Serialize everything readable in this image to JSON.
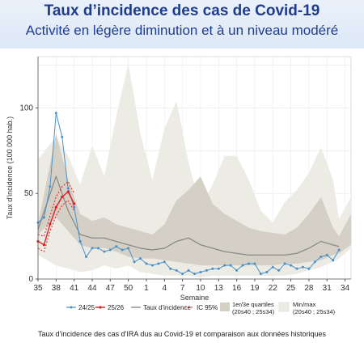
{
  "header": {
    "title": "Taux d’incidence des cas de Covid-19",
    "subtitle": "Activité en légère diminution et à un niveau modéré"
  },
  "caption": "Taux d’incidence des cas d'IRA dus au Covid-19 et comparaison aux données historiques",
  "colors": {
    "minmax_band": "#ecebe4",
    "quartile_band": "#d4d0c6",
    "series_2425": "#4a90c8",
    "series_2526": "#e02020",
    "median": "#8a8a8a"
  },
  "chart_data": {
    "type": "line",
    "xlabel": "Semaine",
    "ylabel": "Taux d'incidence (100 000 hab.)",
    "ylim": [
      0,
      130
    ],
    "yticks": [
      0,
      50,
      100
    ],
    "xtick_labels": [
      "35",
      "38",
      "41",
      "44",
      "47",
      "50",
      "1",
      "4",
      "7",
      "10",
      "13",
      "16",
      "19",
      "22",
      "25",
      "28",
      "31",
      "34"
    ],
    "grid": true,
    "legend_position": "bottom",
    "legend": [
      {
        "key": "s2425",
        "label": "24/25"
      },
      {
        "key": "s2526",
        "label": "25/26"
      },
      {
        "key": "median",
        "label": "Taux d'incidence"
      },
      {
        "key": "ic",
        "label": "IC 95%"
      },
      {
        "key": "quart",
        "label": "1er/3e quartiles",
        "sub": "(20s40 ; 25s34)"
      },
      {
        "key": "minmax",
        "label": "Min/max",
        "sub": "(20s40 ; 25s34)"
      }
    ],
    "minmax_band": {
      "x": [
        0,
        3,
        5,
        7,
        9,
        11,
        13,
        15,
        17,
        19,
        21,
        23,
        25,
        27,
        29,
        31,
        33,
        35,
        37,
        39,
        41,
        43,
        45,
        47,
        49,
        50,
        52
      ],
      "low": [
        14,
        8,
        6,
        4,
        5,
        8,
        6,
        8,
        4,
        3,
        2,
        2,
        2,
        1,
        2,
        2,
        2,
        2,
        2,
        2,
        2,
        3,
        5,
        7,
        10,
        12,
        18
      ],
      "high": [
        70,
        83,
        72,
        55,
        78,
        60,
        95,
        126,
        85,
        58,
        88,
        104,
        68,
        42,
        55,
        72,
        72,
        58,
        40,
        33,
        45,
        52,
        62,
        77,
        58,
        35,
        48
      ]
    },
    "quartile_band": {
      "x": [
        0,
        3,
        5,
        7,
        9,
        11,
        13,
        15,
        17,
        19,
        21,
        23,
        25,
        27,
        29,
        31,
        33,
        35,
        37,
        39,
        41,
        43,
        45,
        47,
        49,
        50,
        52
      ],
      "low": [
        26,
        36,
        28,
        20,
        18,
        18,
        16,
        13,
        12,
        12,
        11,
        10,
        9,
        8,
        8,
        8,
        8,
        8,
        8,
        8,
        9,
        9,
        10,
        11,
        14,
        15,
        20
      ],
      "high": [
        32,
        85,
        58,
        38,
        34,
        36,
        32,
        30,
        28,
        26,
        32,
        46,
        52,
        60,
        44,
        38,
        34,
        30,
        28,
        27,
        26,
        30,
        38,
        48,
        30,
        25,
        38
      ]
    },
    "series": [
      {
        "name": "24/25",
        "x": [
          0,
          1,
          2,
          3,
          4,
          5,
          6,
          7,
          8,
          9,
          10,
          11,
          12,
          13,
          14,
          15,
          16,
          17,
          18,
          19,
          20,
          21,
          22,
          23,
          24,
          25,
          26,
          27,
          28,
          29,
          30,
          31,
          32,
          33,
          34,
          35,
          36,
          37,
          38,
          39,
          40,
          41,
          42,
          43,
          44,
          45,
          46,
          47,
          48,
          49,
          50
        ],
        "values": [
          33,
          36,
          54,
          97,
          83,
          53,
          42,
          22,
          13,
          18,
          18,
          16,
          17,
          19,
          17,
          18,
          10,
          12,
          9,
          8,
          9,
          10,
          6,
          5,
          3,
          5,
          3,
          4,
          5,
          6,
          6,
          8,
          8,
          5,
          8,
          9,
          9,
          3,
          4,
          7,
          5,
          9,
          8,
          6,
          7,
          6,
          10,
          13,
          14,
          11,
          17
        ]
      },
      {
        "name": "25/26",
        "x": [
          0,
          1,
          2,
          3,
          4,
          5,
          6
        ],
        "values": [
          22,
          20,
          32,
          42,
          48,
          51,
          44
        ],
        "ci_low": [
          18,
          16,
          28,
          37,
          43,
          46,
          40
        ],
        "ci_high": [
          26,
          25,
          37,
          48,
          54,
          57,
          50
        ]
      }
    ],
    "median": {
      "x": [
        0,
        3,
        5,
        7,
        9,
        11,
        13,
        15,
        17,
        19,
        21,
        23,
        25,
        27,
        29,
        31,
        33,
        35,
        37,
        39,
        41,
        43,
        45,
        47,
        49,
        50
      ],
      "values": [
        29,
        60,
        40,
        26,
        24,
        24,
        22,
        20,
        18,
        17,
        18,
        22,
        24,
        20,
        18,
        16,
        15,
        14,
        14,
        14,
        14,
        15,
        18,
        22,
        20,
        19
      ]
    }
  }
}
